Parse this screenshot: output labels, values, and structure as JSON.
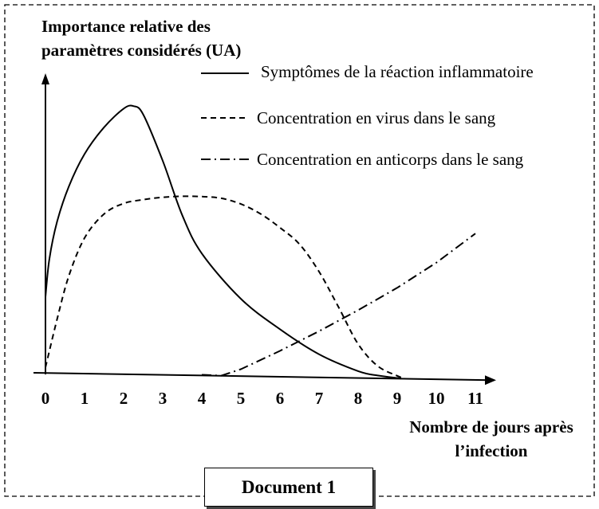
{
  "document_label": "Document 1",
  "chart_data": {
    "type": "line",
    "ylabel_line1": "Importance relative des",
    "ylabel_line2": "paramètres considérés (UA)",
    "xlabel_line1": "Nombre de jours après",
    "xlabel_line2": "l’infection",
    "x_ticks": [
      "0",
      "1",
      "2",
      "3",
      "4",
      "5",
      "6",
      "7",
      "8",
      "9",
      "10",
      "11"
    ],
    "xlim": [
      0,
      11.5
    ],
    "ylim": [
      0,
      10
    ],
    "grid": false,
    "legend_placement": "top-right",
    "series": [
      {
        "name": "Symptômes de la réaction inflammatoire",
        "style": "solid",
        "x": [
          0,
          0.1,
          0.3,
          0.6,
          1.0,
          1.5,
          2.0,
          2.25,
          2.5,
          3.0,
          3.5,
          4.0,
          5.0,
          6.0,
          7.0,
          8.0,
          8.5,
          9.0,
          9.1
        ],
        "y": [
          2.8,
          4.2,
          5.6,
          6.9,
          8.1,
          9.1,
          9.8,
          9.9,
          9.6,
          7.9,
          5.9,
          4.5,
          2.85,
          1.75,
          0.85,
          0.25,
          0.1,
          0.02,
          0.0
        ]
      },
      {
        "name": "Concentration en virus dans le sang",
        "style": "dashed",
        "x": [
          0,
          0.3,
          0.6,
          1.0,
          1.5,
          2.0,
          2.5,
          3.0,
          3.5,
          4.0,
          4.5,
          5.0,
          5.5,
          6.0,
          6.5,
          7.0,
          7.5,
          8.0,
          8.5,
          9.0,
          9.2
        ],
        "y": [
          0.2,
          2.0,
          3.6,
          5.0,
          5.9,
          6.3,
          6.45,
          6.55,
          6.6,
          6.6,
          6.55,
          6.35,
          6.0,
          5.5,
          4.9,
          3.9,
          2.6,
          1.25,
          0.45,
          0.1,
          0.0
        ]
      },
      {
        "name": "Concentration en anticorps dans le sang",
        "style": "dashdot",
        "x": [
          4.0,
          4.5,
          5.0,
          6.0,
          7.0,
          8.0,
          9.0,
          10.0,
          11.0
        ],
        "y": [
          0.02,
          0.0,
          0.25,
          0.95,
          1.7,
          2.5,
          3.35,
          4.3,
          5.4
        ]
      }
    ]
  }
}
